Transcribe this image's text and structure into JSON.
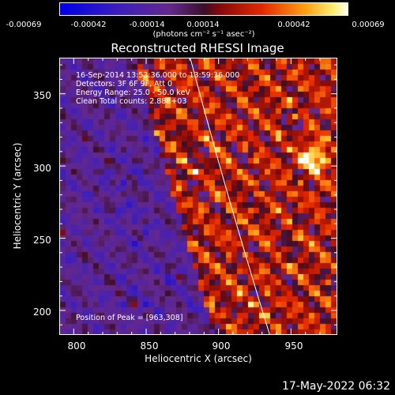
{
  "colorbar": {
    "ticks": [
      "-0.00069",
      "-0.00042",
      "-0.00014",
      "0.00014",
      "0.00042",
      "0.00069"
    ],
    "units": "(photons cm⁻² s⁻¹ asec⁻²)",
    "range": [
      -0.00069,
      0.00069
    ],
    "colormap": "blue-purple-red-yellow-white"
  },
  "chart_data": {
    "type": "heatmap",
    "title": "Reconstructed RHESSI Image",
    "xlabel": "Heliocentric X (arcsec)",
    "ylabel": "Heliocentric Y (arcsec)",
    "xlim": [
      790,
      982
    ],
    "ylim": [
      183,
      375
    ],
    "xticks": [
      800,
      850,
      900,
      950
    ],
    "yticks": [
      200,
      250,
      300,
      350
    ],
    "limb_line": true,
    "annotations": {
      "time": "16-Sep-2014 13:53:36.000 to 13:59:36.000",
      "detectors": "Detectors: 3F 6F 9F, Att 0",
      "energy": "Energy Range: 25.0 - 50.0 keV",
      "method": "Clean     Total counts: 2.88E+03",
      "peak": "Position of Peak = [963,308]"
    },
    "peak": [
      963,
      308
    ]
  },
  "footer": {
    "timestamp": "17-May-2022 06:32"
  }
}
